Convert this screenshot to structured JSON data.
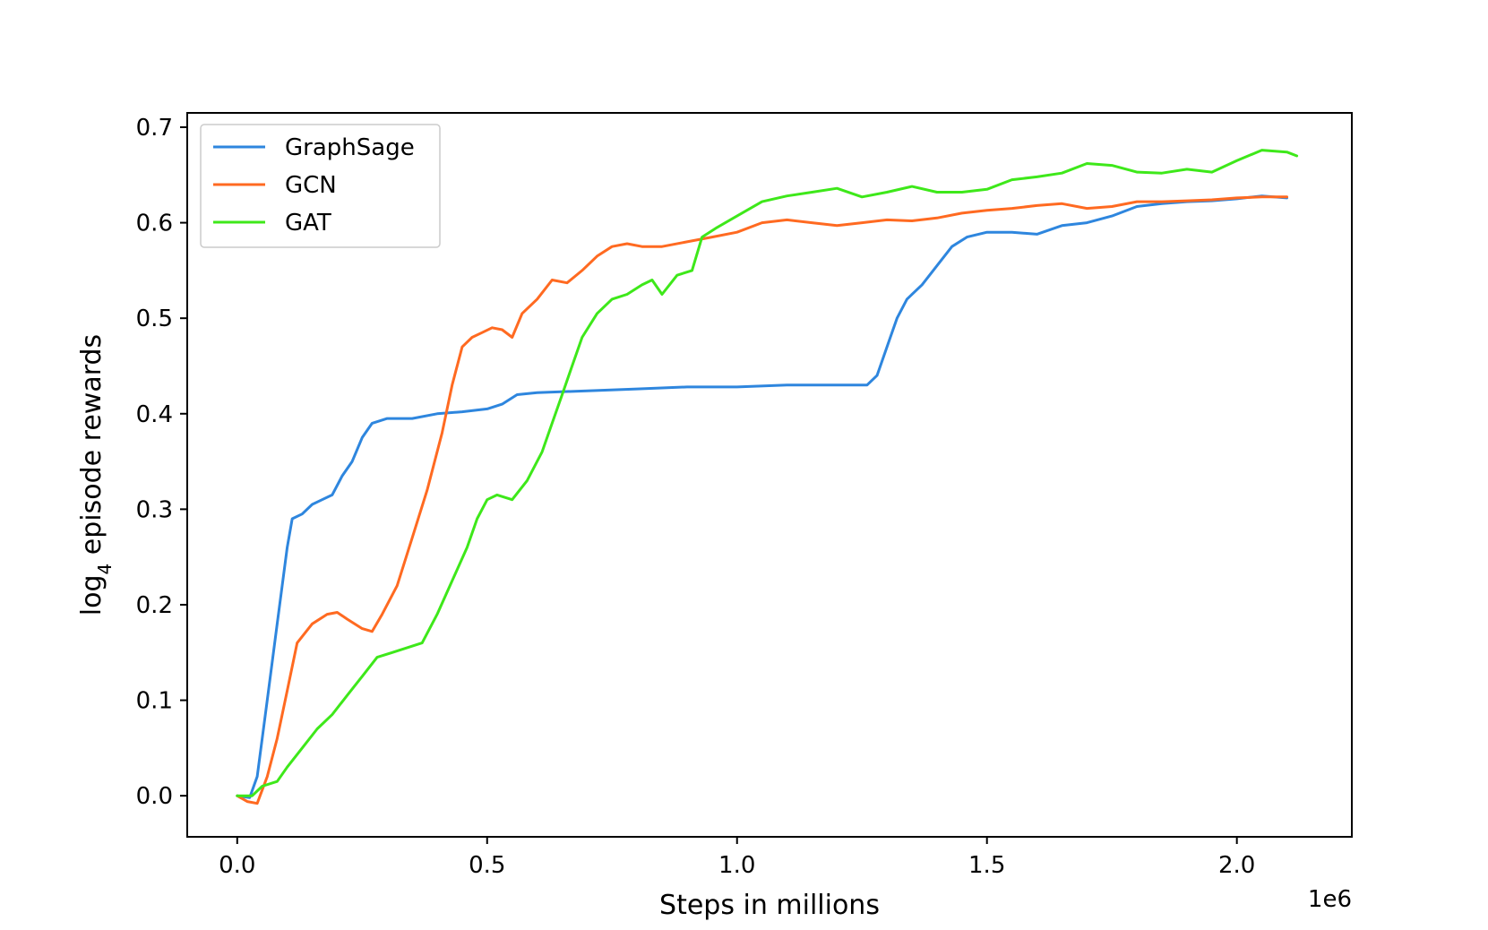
{
  "chart_data": {
    "type": "line",
    "title": "",
    "xlabel": "Steps in millions",
    "ylabel": "log",
    "ylabel_subscript": "4",
    "ylabel_rest": " episode rewards",
    "x_offset_label": "1e6",
    "xlim": [
      -0.1,
      2.23
    ],
    "ylim": [
      -0.043,
      0.715
    ],
    "x_ticks": [
      0.0,
      0.5,
      1.0,
      1.5,
      2.0
    ],
    "x_tick_labels": [
      "0.0",
      "0.5",
      "1.0",
      "1.5",
      "2.0"
    ],
    "y_ticks": [
      0.0,
      0.1,
      0.2,
      0.3,
      0.4,
      0.5,
      0.6,
      0.7
    ],
    "y_tick_labels": [
      "0.0",
      "0.1",
      "0.2",
      "0.3",
      "0.4",
      "0.5",
      "0.6",
      "0.7"
    ],
    "grid": false,
    "legend_position": "upper-left",
    "series": [
      {
        "name": "GraphSage",
        "color": "#2e86de",
        "points": [
          [
            0.0,
            0.0
          ],
          [
            0.025,
            -0.002
          ],
          [
            0.04,
            0.02
          ],
          [
            0.06,
            0.1
          ],
          [
            0.08,
            0.18
          ],
          [
            0.1,
            0.26
          ],
          [
            0.11,
            0.29
          ],
          [
            0.13,
            0.295
          ],
          [
            0.15,
            0.305
          ],
          [
            0.17,
            0.31
          ],
          [
            0.19,
            0.315
          ],
          [
            0.21,
            0.335
          ],
          [
            0.23,
            0.35
          ],
          [
            0.25,
            0.375
          ],
          [
            0.27,
            0.39
          ],
          [
            0.3,
            0.395
          ],
          [
            0.35,
            0.395
          ],
          [
            0.4,
            0.4
          ],
          [
            0.45,
            0.402
          ],
          [
            0.5,
            0.405
          ],
          [
            0.53,
            0.41
          ],
          [
            0.56,
            0.42
          ],
          [
            0.6,
            0.422
          ],
          [
            0.7,
            0.424
          ],
          [
            0.8,
            0.426
          ],
          [
            0.9,
            0.428
          ],
          [
            1.0,
            0.428
          ],
          [
            1.1,
            0.43
          ],
          [
            1.2,
            0.43
          ],
          [
            1.26,
            0.43
          ],
          [
            1.28,
            0.44
          ],
          [
            1.3,
            0.47
          ],
          [
            1.32,
            0.5
          ],
          [
            1.34,
            0.52
          ],
          [
            1.37,
            0.535
          ],
          [
            1.4,
            0.555
          ],
          [
            1.43,
            0.575
          ],
          [
            1.46,
            0.585
          ],
          [
            1.5,
            0.59
          ],
          [
            1.55,
            0.59
          ],
          [
            1.6,
            0.588
          ],
          [
            1.65,
            0.597
          ],
          [
            1.7,
            0.6
          ],
          [
            1.75,
            0.607
          ],
          [
            1.8,
            0.617
          ],
          [
            1.85,
            0.62
          ],
          [
            1.9,
            0.622
          ],
          [
            1.95,
            0.623
          ],
          [
            2.0,
            0.625
          ],
          [
            2.05,
            0.628
          ],
          [
            2.1,
            0.626
          ]
        ]
      },
      {
        "name": "GCN",
        "color": "#ff6a21",
        "points": [
          [
            0.0,
            0.0
          ],
          [
            0.02,
            -0.006
          ],
          [
            0.04,
            -0.008
          ],
          [
            0.06,
            0.02
          ],
          [
            0.08,
            0.06
          ],
          [
            0.1,
            0.11
          ],
          [
            0.12,
            0.16
          ],
          [
            0.15,
            0.18
          ],
          [
            0.18,
            0.19
          ],
          [
            0.2,
            0.192
          ],
          [
            0.22,
            0.185
          ],
          [
            0.25,
            0.175
          ],
          [
            0.27,
            0.172
          ],
          [
            0.29,
            0.19
          ],
          [
            0.32,
            0.22
          ],
          [
            0.35,
            0.27
          ],
          [
            0.38,
            0.32
          ],
          [
            0.41,
            0.38
          ],
          [
            0.43,
            0.43
          ],
          [
            0.45,
            0.47
          ],
          [
            0.47,
            0.48
          ],
          [
            0.49,
            0.485
          ],
          [
            0.51,
            0.49
          ],
          [
            0.53,
            0.488
          ],
          [
            0.55,
            0.48
          ],
          [
            0.57,
            0.505
          ],
          [
            0.6,
            0.52
          ],
          [
            0.63,
            0.54
          ],
          [
            0.66,
            0.537
          ],
          [
            0.69,
            0.55
          ],
          [
            0.72,
            0.565
          ],
          [
            0.75,
            0.575
          ],
          [
            0.78,
            0.578
          ],
          [
            0.81,
            0.575
          ],
          [
            0.85,
            0.575
          ],
          [
            0.9,
            0.58
          ],
          [
            0.95,
            0.585
          ],
          [
            1.0,
            0.59
          ],
          [
            1.05,
            0.6
          ],
          [
            1.1,
            0.603
          ],
          [
            1.15,
            0.6
          ],
          [
            1.2,
            0.597
          ],
          [
            1.25,
            0.6
          ],
          [
            1.3,
            0.603
          ],
          [
            1.35,
            0.602
          ],
          [
            1.4,
            0.605
          ],
          [
            1.45,
            0.61
          ],
          [
            1.5,
            0.613
          ],
          [
            1.55,
            0.615
          ],
          [
            1.6,
            0.618
          ],
          [
            1.65,
            0.62
          ],
          [
            1.7,
            0.615
          ],
          [
            1.75,
            0.617
          ],
          [
            1.8,
            0.622
          ],
          [
            1.85,
            0.622
          ],
          [
            1.9,
            0.623
          ],
          [
            1.95,
            0.624
          ],
          [
            2.0,
            0.626
          ],
          [
            2.05,
            0.627
          ],
          [
            2.1,
            0.627
          ]
        ]
      },
      {
        "name": "GAT",
        "color": "#3ee81a",
        "points": [
          [
            0.0,
            0.0
          ],
          [
            0.03,
            0.0
          ],
          [
            0.05,
            0.01
          ],
          [
            0.08,
            0.015
          ],
          [
            0.1,
            0.03
          ],
          [
            0.13,
            0.05
          ],
          [
            0.16,
            0.07
          ],
          [
            0.19,
            0.085
          ],
          [
            0.22,
            0.105
          ],
          [
            0.25,
            0.125
          ],
          [
            0.28,
            0.145
          ],
          [
            0.31,
            0.15
          ],
          [
            0.34,
            0.155
          ],
          [
            0.37,
            0.16
          ],
          [
            0.4,
            0.19
          ],
          [
            0.43,
            0.225
          ],
          [
            0.46,
            0.26
          ],
          [
            0.48,
            0.29
          ],
          [
            0.5,
            0.31
          ],
          [
            0.52,
            0.315
          ],
          [
            0.55,
            0.31
          ],
          [
            0.58,
            0.33
          ],
          [
            0.61,
            0.36
          ],
          [
            0.63,
            0.39
          ],
          [
            0.65,
            0.42
          ],
          [
            0.67,
            0.45
          ],
          [
            0.69,
            0.48
          ],
          [
            0.72,
            0.505
          ],
          [
            0.75,
            0.52
          ],
          [
            0.78,
            0.525
          ],
          [
            0.81,
            0.535
          ],
          [
            0.83,
            0.54
          ],
          [
            0.85,
            0.525
          ],
          [
            0.88,
            0.545
          ],
          [
            0.91,
            0.55
          ],
          [
            0.93,
            0.585
          ],
          [
            0.96,
            0.595
          ],
          [
            1.0,
            0.607
          ],
          [
            1.05,
            0.622
          ],
          [
            1.1,
            0.628
          ],
          [
            1.15,
            0.632
          ],
          [
            1.2,
            0.636
          ],
          [
            1.25,
            0.627
          ],
          [
            1.3,
            0.632
          ],
          [
            1.35,
            0.638
          ],
          [
            1.4,
            0.632
          ],
          [
            1.45,
            0.632
          ],
          [
            1.5,
            0.635
          ],
          [
            1.55,
            0.645
          ],
          [
            1.6,
            0.648
          ],
          [
            1.65,
            0.652
          ],
          [
            1.7,
            0.662
          ],
          [
            1.75,
            0.66
          ],
          [
            1.8,
            0.653
          ],
          [
            1.85,
            0.652
          ],
          [
            1.9,
            0.656
          ],
          [
            1.95,
            0.653
          ],
          [
            2.0,
            0.665
          ],
          [
            2.05,
            0.676
          ],
          [
            2.1,
            0.674
          ],
          [
            2.12,
            0.67
          ]
        ]
      }
    ]
  }
}
